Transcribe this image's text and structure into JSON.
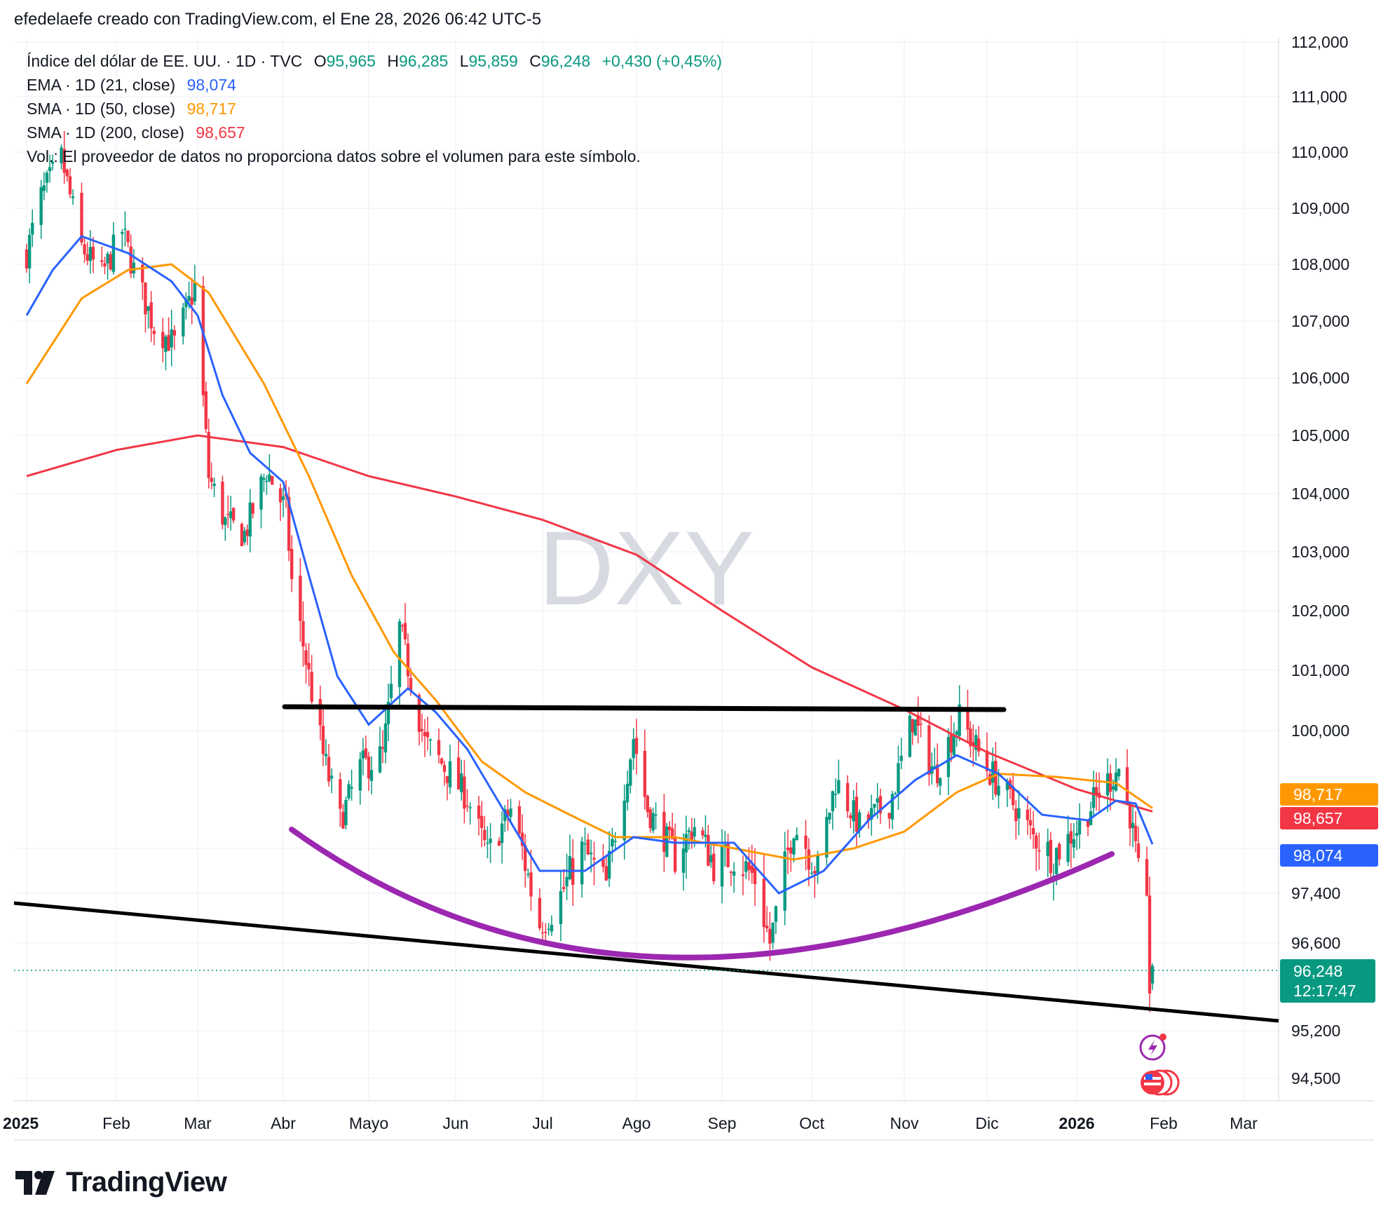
{
  "header": {
    "title": "efedelaefe creado con TradingView.com, el Ene 28, 2026 06:42 UTC-5"
  },
  "legend": {
    "symbol": "Índice del dólar de EE. UU. · 1D · TVC",
    "o_label": "O",
    "o_value": "95,965",
    "h_label": "H",
    "h_value": "96,285",
    "l_label": "L",
    "l_value": "95,859",
    "c_label": "C",
    "c_value": "96,248",
    "change": "+0,430 (+0,45%)",
    "ema21": {
      "label": "EMA · 1D (21, close)",
      "value": "98,074",
      "color": "#2962ff"
    },
    "sma50": {
      "label": "SMA · 1D (50, close)",
      "value": "98,717",
      "color": "#ff9800"
    },
    "sma200": {
      "label": "SMA · 1D (200, close)",
      "value": "98,657",
      "color": "#f23645"
    },
    "volume_note": "Vol.: El proveedor de datos no proporciona datos sobre el volumen para este símbolo."
  },
  "watermark": "DXY",
  "colors": {
    "up": "#089981",
    "down": "#f23645",
    "ema": "#2962ff",
    "sma50": "#ff9800",
    "sma200": "#f23645",
    "arc": "#9c27b0",
    "trendline": "#000000",
    "grid": "#f0f3fa"
  },
  "price_badges": {
    "sma50": "98,717",
    "sma200": "98,657",
    "ema21": "98,074",
    "last": "96,248",
    "countdown": "12:17:47"
  },
  "branding": {
    "name": "TradingView"
  },
  "chart_data": {
    "type": "candlestick",
    "symbol": "DXY",
    "timeframe": "1D",
    "y_axis_labels": [
      "112,000",
      "111,000",
      "110,000",
      "109,000",
      "108,000",
      "107,000",
      "106,000",
      "105,000",
      "104,000",
      "103,000",
      "102,000",
      "101,000",
      "100,000",
      "97,400",
      "96,600",
      "95,200",
      "94,500"
    ],
    "x_axis_labels": [
      "2025",
      "Feb",
      "Mar",
      "Abr",
      "Mayo",
      "Jun",
      "Jul",
      "Ago",
      "Sep",
      "Oct",
      "Nov",
      "Dic",
      "2026",
      "Feb",
      "Mar"
    ],
    "ohlc_summary": [
      {
        "date": "2025-01-02",
        "close": 108.3
      },
      {
        "date": "2025-01-13",
        "close": 109.9
      },
      {
        "date": "2025-01-31",
        "close": 108.4
      },
      {
        "date": "2025-02-28",
        "close": 107.6
      },
      {
        "date": "2025-03-11",
        "close": 103.5
      },
      {
        "date": "2025-03-31",
        "close": 104.2
      },
      {
        "date": "2025-04-11",
        "close": 100.1
      },
      {
        "date": "2025-04-21",
        "close": 98.0
      },
      {
        "date": "2025-05-12",
        "close": 101.8
      },
      {
        "date": "2025-06-12",
        "close": 97.9
      },
      {
        "date": "2025-07-01",
        "close": 96.6
      },
      {
        "date": "2025-08-01",
        "close": 98.7
      },
      {
        "date": "2025-09-17",
        "close": 96.6
      },
      {
        "date": "2025-11-04",
        "close": 100.2
      },
      {
        "date": "2025-12-24",
        "close": 97.8
      },
      {
        "date": "2026-01-20",
        "close": 98.3
      },
      {
        "date": "2026-01-27",
        "close": 95.9
      },
      {
        "date": "2026-01-28",
        "open": 95.965,
        "high": 96.285,
        "low": 95.859,
        "close": 96.248
      }
    ],
    "indicators": [
      {
        "name": "EMA · 1D (21, close)",
        "last": 98.074
      },
      {
        "name": "SMA · 1D (50, close)",
        "last": 98.717
      },
      {
        "name": "SMA · 1D (200, close)",
        "last": 98.657
      }
    ],
    "drawings": [
      {
        "type": "horizontal-line",
        "price": 100.45,
        "from": "2025-04-01",
        "to": "2025-12-05"
      },
      {
        "type": "trendline",
        "from": {
          "date": "2024-12-31",
          "price": 97.0
        },
        "to": {
          "date": "2026-03-15",
          "price": 95.5
        }
      },
      {
        "type": "arc",
        "from": "2025-04-02",
        "to": "2026-01-20",
        "low": 96.2
      }
    ]
  }
}
